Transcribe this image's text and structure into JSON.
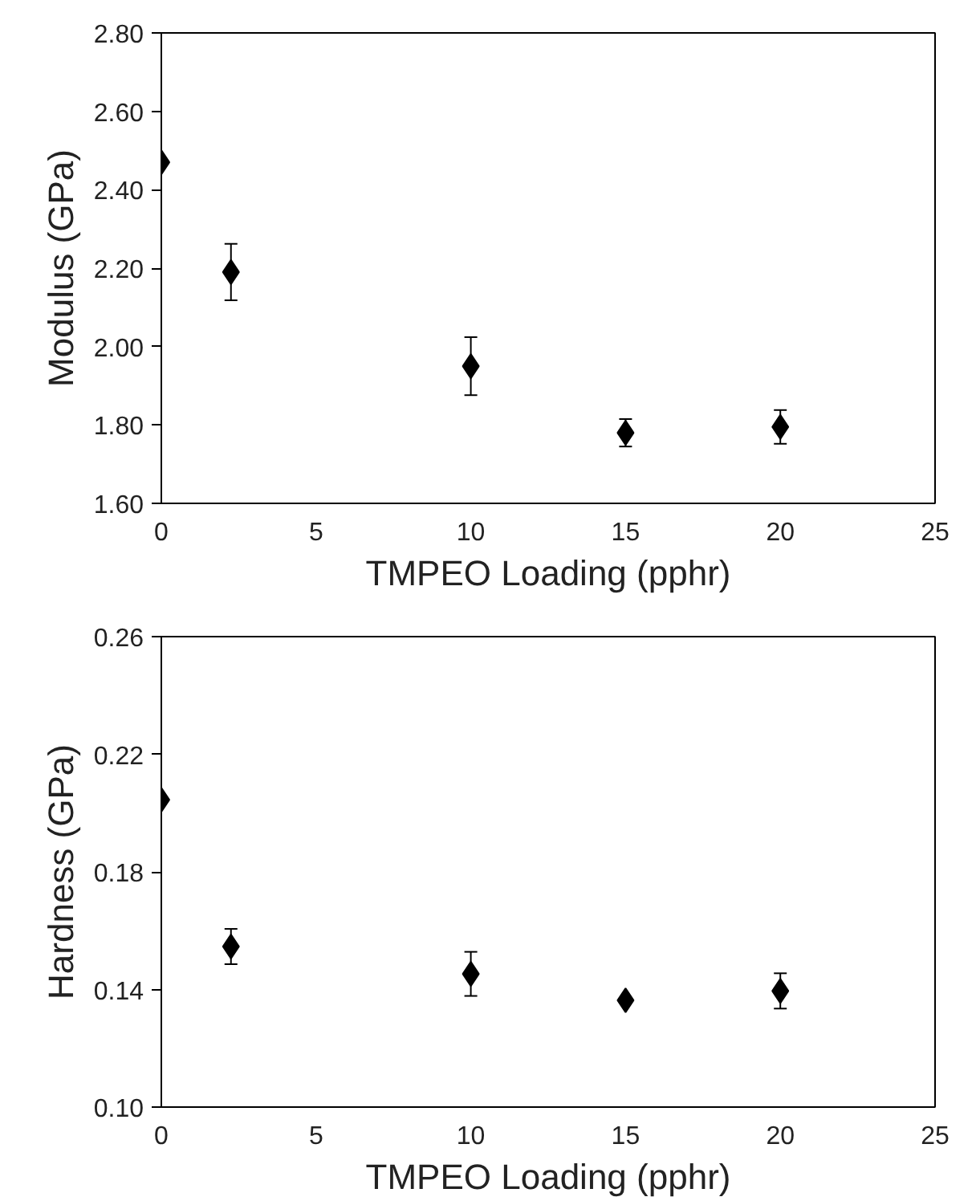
{
  "chart_data": [
    {
      "type": "scatter",
      "xlabel": "TMPEO Loading (pphr)",
      "ylabel": "Modulus (GPa)",
      "x": [
        0,
        2.25,
        10,
        15,
        20
      ],
      "values": [
        2.47,
        2.19,
        1.95,
        1.78,
        1.795
      ],
      "errors": [
        null,
        0.072,
        0.074,
        0.035,
        0.043
      ],
      "color": "#000000",
      "marker": "diamond",
      "grid": false,
      "xlim": [
        0,
        25
      ],
      "xticks": [
        0,
        5,
        10,
        15,
        20,
        25
      ],
      "ylim": [
        1.6,
        2.8
      ],
      "yticks": [
        {
          "value": 1.6,
          "label": "1.60"
        },
        {
          "value": 1.8,
          "label": "1.80"
        },
        {
          "value": 2.0,
          "label": "2.00"
        },
        {
          "value": 2.2,
          "label": "2.20"
        },
        {
          "value": 2.4,
          "label": "2.40"
        },
        {
          "value": 2.6,
          "label": "2.60"
        },
        {
          "value": 2.8,
          "label": "2.80"
        }
      ]
    },
    {
      "type": "scatter",
      "xlabel": "TMPEO Loading (pphr)",
      "ylabel": "Hardness (GPa)",
      "x": [
        0,
        2.25,
        10,
        15,
        20
      ],
      "values": [
        0.2045,
        0.1546,
        0.1453,
        0.1363,
        0.1395
      ],
      "errors": [
        null,
        0.006,
        0.0075,
        null,
        0.006
      ],
      "color": "#000000",
      "marker": "diamond",
      "grid": false,
      "xlim": [
        0,
        25
      ],
      "xticks": [
        0,
        5,
        10,
        15,
        20,
        25
      ],
      "ylim": [
        0.1,
        0.26
      ],
      "yticks": [
        {
          "value": 0.1,
          "label": "0.10"
        },
        {
          "value": 0.14,
          "label": "0.14"
        },
        {
          "value": 0.18,
          "label": "0.18"
        },
        {
          "value": 0.22,
          "label": "0.22"
        },
        {
          "value": 0.26,
          "label": "0.26"
        }
      ]
    }
  ]
}
